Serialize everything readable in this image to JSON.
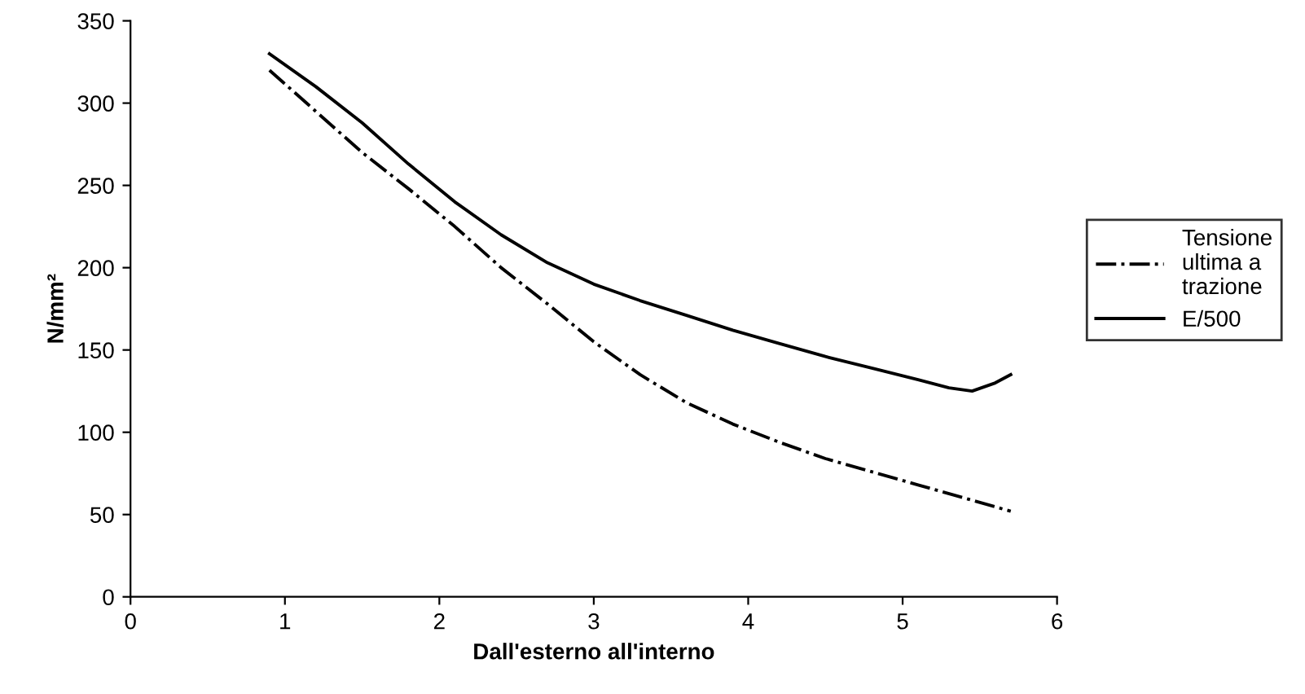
{
  "chart_data": {
    "type": "line",
    "xlabel": "Dall'esterno all'interno",
    "ylabel": "N/mm²",
    "xlim": [
      0,
      6
    ],
    "ylim": [
      0,
      350
    ],
    "xticks": [
      0,
      1,
      2,
      3,
      4,
      5,
      6
    ],
    "yticks": [
      0,
      50,
      100,
      150,
      200,
      250,
      300,
      350
    ],
    "grid": false,
    "legend": "right",
    "marker": "none",
    "series": [
      {
        "name": "Tensione ultima a trazione",
        "color": "#000000",
        "line_style": "dashdot",
        "x": [
          0.9,
          1.2,
          1.5,
          1.8,
          2.1,
          2.4,
          2.7,
          3.0,
          3.3,
          3.6,
          3.9,
          4.2,
          4.5,
          4.8,
          5.1,
          5.4,
          5.7
        ],
        "values": [
          320,
          295,
          270,
          248,
          225,
          200,
          178,
          155,
          135,
          118,
          105,
          94,
          84,
          76,
          68,
          60,
          52
        ]
      },
      {
        "name": "E/500",
        "color": "#000000",
        "line_style": "solid",
        "x": [
          0.9,
          1.2,
          1.5,
          1.8,
          2.1,
          2.4,
          2.7,
          3.0,
          3.3,
          3.6,
          3.9,
          4.2,
          4.5,
          4.8,
          5.1,
          5.3,
          5.45,
          5.6,
          5.7
        ],
        "values": [
          330,
          310,
          288,
          263,
          240,
          220,
          203,
          190,
          180,
          171,
          162,
          154,
          146,
          139,
          132,
          127,
          125,
          130,
          135
        ]
      }
    ]
  }
}
